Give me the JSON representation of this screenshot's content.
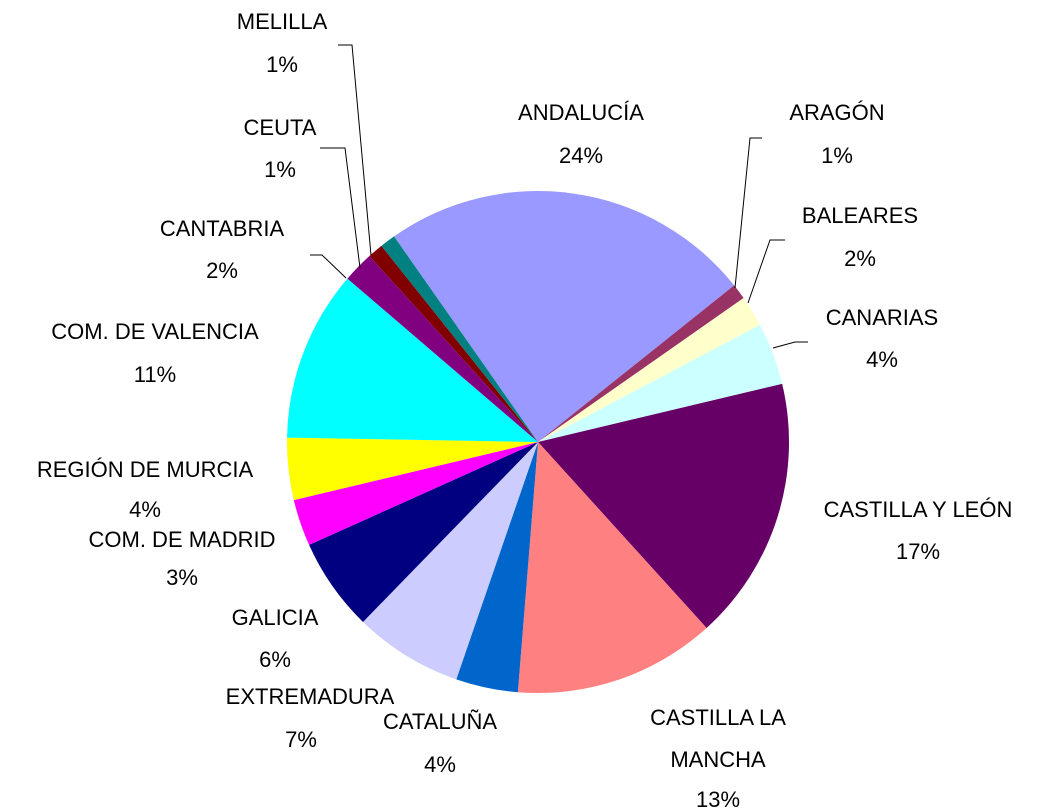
{
  "chart_data": {
    "type": "pie",
    "categories": [
      "ANDALUCÍA",
      "ARAGÓN",
      "BALEARES",
      "CANARIAS",
      "CASTILLA Y LEÓN",
      "CASTILLA LA MANCHA",
      "CATALUÑA",
      "EXTREMADURA",
      "GALICIA",
      "COM. DE MADRID",
      "REGIÓN DE MURCIA",
      "COM. DE VALENCIA",
      "CANTABRIA",
      "CEUTA",
      "MELILLA"
    ],
    "values": [
      24,
      1,
      2,
      4,
      17,
      13,
      4,
      7,
      6,
      3,
      4,
      11,
      2,
      1,
      1
    ],
    "value_labels": [
      "24%",
      "1%",
      "2%",
      "4%",
      "17%",
      "13%",
      "4%",
      "7%",
      "6%",
      "3%",
      "4%",
      "11%",
      "2%",
      "1%",
      "1%"
    ],
    "colors": [
      "#9999ff",
      "#993366",
      "#ffffcc",
      "#ccffff",
      "#660066",
      "#ff8080",
      "#0066cc",
      "#ccccff",
      "#000080",
      "#ff00ff",
      "#ffff00",
      "#00ffff",
      "#800080",
      "#800000",
      "#008080"
    ]
  }
}
